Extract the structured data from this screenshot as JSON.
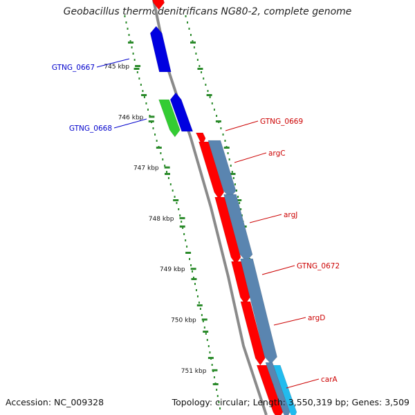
{
  "title": "Geobacillus thermodenitrificans NG80-2, complete genome",
  "accession": "Accession: NC_009328",
  "stats": "Topology: circular; Length: 3,550,319 bp; Genes: 3,509",
  "colors": {
    "backbone": "#8a8a8a",
    "tick": "#2a8a2a",
    "forward_gene": "#ff0000",
    "forward_label": "#cc0000",
    "reverse_gene": "#0000e0",
    "reverse_label": "#0000cc",
    "green_gene": "#33cc33",
    "cds_block": "#5a85b0",
    "cyan_block": "#22bbee"
  },
  "ruler": [
    {
      "pos": 745,
      "label": "745 kbp"
    },
    {
      "pos": 746,
      "label": "746 kbp"
    },
    {
      "pos": 747,
      "label": "747 kbp"
    },
    {
      "pos": 748,
      "label": "748 kbp"
    },
    {
      "pos": 749,
      "label": "749 kbp"
    },
    {
      "pos": 750,
      "label": "750 kbp"
    },
    {
      "pos": 751,
      "label": "751 kbp"
    }
  ],
  "genes": [
    {
      "name": "GTNG_0667",
      "strand": "-",
      "color_key": "reverse_gene",
      "start": 744.2,
      "end": 745.1
    },
    {
      "name": "GTNG_0668",
      "strand": "-",
      "color_key": "reverse_gene",
      "start": 745.7,
      "end": 746.3
    },
    {
      "name": "",
      "strand": "-",
      "color_key": "green_gene",
      "start": 745.7,
      "end": 746.3
    },
    {
      "name": "GTNG_0669",
      "strand": "+",
      "color_key": "forward_gene",
      "start": 746.5,
      "end": 746.7
    },
    {
      "name": "argC",
      "strand": "+",
      "color_key": "forward_gene",
      "start": 746.7,
      "end": 747.8
    },
    {
      "name": "argJ",
      "strand": "+",
      "color_key": "forward_gene",
      "start": 747.8,
      "end": 748.9
    },
    {
      "name": "GTNG_0672",
      "strand": "+",
      "color_key": "forward_gene",
      "start": 748.9,
      "end": 749.7
    },
    {
      "name": "argD",
      "strand": "+",
      "color_key": "forward_gene",
      "start": 749.7,
      "end": 750.9
    },
    {
      "name": "carA",
      "strand": "+",
      "color_key": "forward_gene",
      "start": 751.0,
      "end": 752.0
    }
  ]
}
